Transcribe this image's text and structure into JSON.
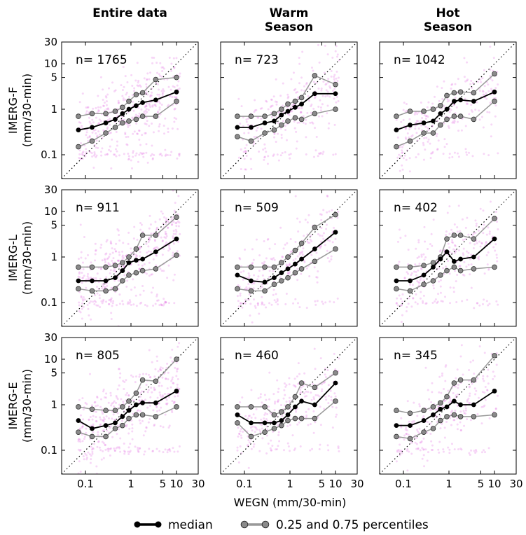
{
  "chart_data": {
    "type": "scatter",
    "scale": "log-log",
    "xlabel": "WEGN (mm/30-min)",
    "xlim": [
      0.03,
      30
    ],
    "ylim": [
      0.03,
      30
    ],
    "xticks": [
      0.1,
      1,
      5,
      10,
      30
    ],
    "xtick_labels": [
      "0.1",
      "1",
      "5",
      "10",
      "30"
    ],
    "yticks": [
      0.1,
      1,
      5,
      10,
      30
    ],
    "ytick_labels": [
      "0.1",
      "1",
      "5",
      "10",
      "30"
    ],
    "columns": [
      {
        "title_lines": [
          "Entire data"
        ]
      },
      {
        "title_lines": [
          "Warm",
          "Season"
        ]
      },
      {
        "title_lines": [
          "Hot",
          "Season"
        ]
      }
    ],
    "rows": [
      {
        "label_lines": [
          "IMERG-F",
          "(mm/30-min)"
        ]
      },
      {
        "label_lines": [
          "IMERG-L",
          "(mm/30-min)"
        ]
      },
      {
        "label_lines": [
          "IMERG-E",
          "(mm/30-min)"
        ]
      }
    ],
    "bin_centers": [
      0.07,
      0.14,
      0.28,
      0.45,
      0.65,
      0.9,
      1.3,
      1.8,
      3.5,
      10
    ],
    "panels": [
      {
        "row": 0,
        "col": 0,
        "n_label": "n= 1765",
        "x": [
          0.07,
          0.14,
          0.28,
          0.45,
          0.65,
          0.9,
          1.3,
          1.8,
          3.5,
          10
        ],
        "median": [
          0.35,
          0.4,
          0.5,
          0.6,
          0.8,
          1.0,
          1.2,
          1.4,
          1.6,
          2.4
        ],
        "p25": [
          0.15,
          0.2,
          0.3,
          0.4,
          0.5,
          0.55,
          0.6,
          0.7,
          0.7,
          1.5
        ],
        "p75": [
          0.7,
          0.8,
          0.8,
          0.9,
          1.1,
          1.5,
          2.1,
          2.3,
          4.5,
          5.0
        ]
      },
      {
        "row": 0,
        "col": 1,
        "n_label": "n= 723",
        "x": [
          0.07,
          0.14,
          0.28,
          0.45,
          0.65,
          0.9,
          1.3,
          1.8,
          3.5,
          10
        ],
        "median": [
          0.4,
          0.4,
          0.5,
          0.55,
          0.75,
          0.9,
          1.1,
          1.3,
          2.2,
          2.2
        ],
        "p25": [
          0.25,
          0.2,
          0.3,
          0.35,
          0.45,
          0.55,
          0.65,
          0.6,
          0.8,
          1.0
        ],
        "p75": [
          0.7,
          0.7,
          0.7,
          0.8,
          1.0,
          1.3,
          1.5,
          1.8,
          5.5,
          3.5
        ]
      },
      {
        "row": 0,
        "col": 2,
        "n_label": "n= 1042",
        "x": [
          0.07,
          0.14,
          0.28,
          0.45,
          0.65,
          0.9,
          1.3,
          1.8,
          3.5,
          10
        ],
        "median": [
          0.35,
          0.45,
          0.5,
          0.55,
          0.8,
          1.0,
          1.5,
          1.6,
          1.5,
          2.4
        ],
        "p25": [
          0.15,
          0.2,
          0.3,
          0.3,
          0.45,
          0.6,
          0.7,
          0.7,
          0.6,
          1.5
        ],
        "p75": [
          0.7,
          0.9,
          0.9,
          1.0,
          1.2,
          2.0,
          2.3,
          2.4,
          2.3,
          6.0
        ]
      },
      {
        "row": 1,
        "col": 0,
        "n_label": "n= 911",
        "x": [
          0.07,
          0.14,
          0.28,
          0.45,
          0.65,
          0.9,
          1.3,
          1.8,
          3.5,
          10
        ],
        "median": [
          0.3,
          0.3,
          0.3,
          0.35,
          0.5,
          0.75,
          0.85,
          0.9,
          1.3,
          2.5
        ],
        "p25": [
          0.2,
          0.18,
          0.18,
          0.2,
          0.3,
          0.4,
          0.45,
          0.5,
          0.55,
          1.1
        ],
        "p75": [
          0.6,
          0.6,
          0.6,
          0.65,
          0.75,
          1.0,
          1.5,
          3.0,
          3.0,
          7.5
        ]
      },
      {
        "row": 1,
        "col": 1,
        "n_label": "n= 509",
        "x": [
          0.07,
          0.14,
          0.28,
          0.45,
          0.65,
          0.9,
          1.3,
          1.8,
          3.5,
          10
        ],
        "median": [
          0.4,
          0.3,
          0.28,
          0.35,
          0.45,
          0.55,
          0.7,
          0.9,
          1.5,
          3.5
        ],
        "p25": [
          0.2,
          0.18,
          0.18,
          0.25,
          0.3,
          0.35,
          0.45,
          0.55,
          0.8,
          1.5
        ],
        "p75": [
          0.6,
          0.6,
          0.6,
          0.6,
          0.75,
          1.0,
          1.4,
          2.0,
          4.5,
          8.5
        ]
      },
      {
        "row": 1,
        "col": 2,
        "n_label": "n= 402",
        "x": [
          0.07,
          0.14,
          0.28,
          0.45,
          0.65,
          0.9,
          1.3,
          1.8,
          3.5,
          10
        ],
        "median": [
          0.3,
          0.3,
          0.4,
          0.6,
          0.9,
          1.3,
          0.8,
          0.9,
          1.0,
          2.5
        ],
        "p25": [
          0.2,
          0.18,
          0.25,
          0.3,
          0.4,
          0.5,
          0.6,
          0.5,
          0.55,
          0.6
        ],
        "p75": [
          0.6,
          0.6,
          0.65,
          0.75,
          1.0,
          2.5,
          3.0,
          3.0,
          2.5,
          7.0
        ]
      },
      {
        "row": 2,
        "col": 0,
        "n_label": "n= 805",
        "x": [
          0.07,
          0.14,
          0.28,
          0.45,
          0.65,
          0.9,
          1.3,
          1.8,
          3.5,
          10
        ],
        "median": [
          0.45,
          0.3,
          0.35,
          0.4,
          0.55,
          0.75,
          1.0,
          1.1,
          1.1,
          2.0
        ],
        "p25": [
          0.25,
          0.2,
          0.2,
          0.3,
          0.35,
          0.5,
          0.6,
          0.6,
          0.55,
          0.9
        ],
        "p75": [
          0.9,
          0.8,
          0.75,
          0.75,
          0.9,
          1.2,
          1.8,
          3.5,
          3.3,
          10
        ]
      },
      {
        "row": 2,
        "col": 1,
        "n_label": "n= 460",
        "x": [
          0.07,
          0.14,
          0.28,
          0.45,
          0.65,
          0.9,
          1.3,
          1.8,
          3.5,
          10
        ],
        "median": [
          0.6,
          0.4,
          0.4,
          0.4,
          0.45,
          0.6,
          0.9,
          1.2,
          1.0,
          3.0
        ],
        "p25": [
          0.4,
          0.2,
          0.25,
          0.3,
          0.35,
          0.45,
          0.5,
          0.5,
          0.5,
          1.2
        ],
        "p75": [
          0.9,
          0.9,
          0.9,
          0.6,
          0.7,
          0.9,
          1.5,
          3.0,
          2.4,
          5.0
        ]
      },
      {
        "row": 2,
        "col": 2,
        "n_label": "n= 345",
        "x": [
          0.07,
          0.14,
          0.28,
          0.45,
          0.65,
          0.9,
          1.3,
          1.8,
          3.5,
          10
        ],
        "median": [
          0.35,
          0.35,
          0.45,
          0.6,
          0.8,
          0.9,
          1.2,
          1.0,
          1.0,
          2.0
        ],
        "p25": [
          0.2,
          0.18,
          0.25,
          0.3,
          0.45,
          0.55,
          0.6,
          0.55,
          0.55,
          0.6
        ],
        "p75": [
          0.75,
          0.65,
          0.75,
          0.9,
          1.1,
          1.5,
          3.0,
          3.5,
          3.5,
          12
        ]
      }
    ],
    "reference_line": "1:1 dotted diagonal",
    "scatter_color": "#e36ee3",
    "median_color": "#000000",
    "percentile_color": "#8a8a8a",
    "percentile_line_color": "#999999",
    "legend": {
      "position": "bottom-center",
      "entries": [
        {
          "label": "median",
          "style": "median"
        },
        {
          "label": "0.25 and 0.75 percentiles",
          "style": "percentile"
        }
      ]
    }
  }
}
